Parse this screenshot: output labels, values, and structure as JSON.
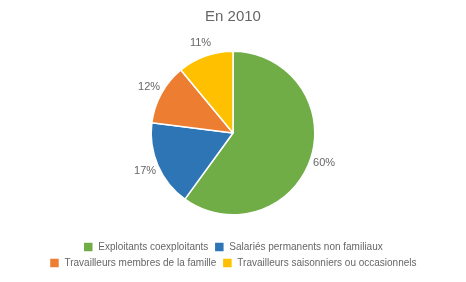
{
  "chart_data": {
    "type": "pie",
    "title": "En 2010",
    "categories": [
      "Exploitants coexploitants",
      "Salariés permanents non familiaux",
      "Travailleurs membres de la famille",
      "Travailleurs saisonniers ou occasionnels"
    ],
    "values": [
      60,
      17,
      12,
      11
    ],
    "value_labels": [
      "60%",
      "17%",
      "12%",
      "11%"
    ],
    "colors": [
      "#70ad47",
      "#2e75b6",
      "#ed7d31",
      "#ffc000"
    ],
    "data_labels": true,
    "legend": "bottom"
  }
}
